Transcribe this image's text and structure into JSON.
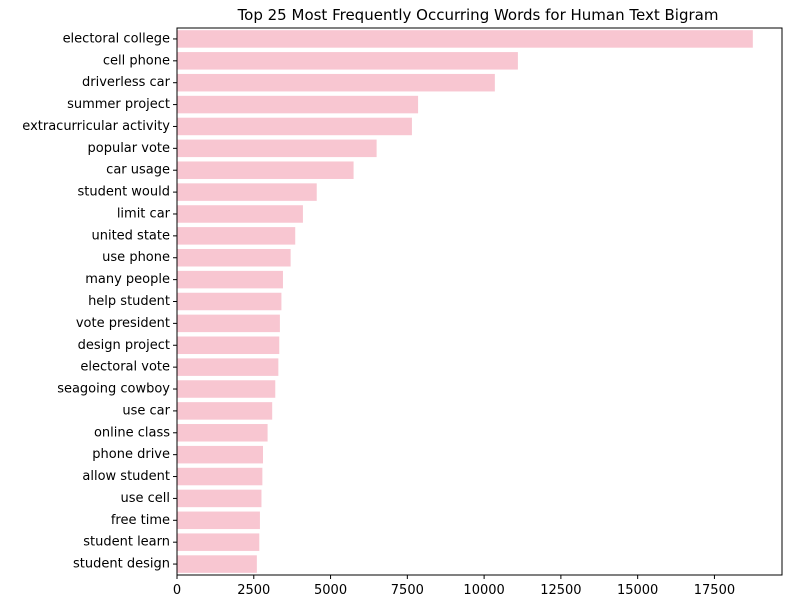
{
  "chart_data": {
    "type": "bar",
    "orientation": "horizontal",
    "title": "Top 25 Most Frequently Occurring Words for Human Text Bigram",
    "xlabel": "",
    "ylabel": "",
    "categories": [
      "electoral college",
      "cell phone",
      "driverless car",
      "summer project",
      "extracurricular activity",
      "popular vote",
      "car usage",
      "student would",
      "limit car",
      "united state",
      "use phone",
      "many people",
      "help student",
      "vote president",
      "design project",
      "electoral vote",
      "seagoing cowboy",
      "use car",
      "online class",
      "phone drive",
      "allow student",
      "use cell",
      "free time",
      "student learn",
      "student design"
    ],
    "values": [
      18750,
      11100,
      10350,
      7850,
      7650,
      6500,
      5750,
      4550,
      4100,
      3850,
      3700,
      3450,
      3400,
      3350,
      3330,
      3300,
      3200,
      3100,
      2950,
      2800,
      2780,
      2750,
      2700,
      2680,
      2600
    ],
    "xlim": [
      0,
      19700
    ],
    "xticks": [
      0,
      2500,
      5000,
      7500,
      10000,
      12500,
      15000,
      17500
    ],
    "xtick_labels": [
      "0",
      "2500",
      "5000",
      "7500",
      "10000",
      "12500",
      "15000",
      "17500"
    ],
    "bar_color": "#f8c6d1",
    "grid": false,
    "legend": "none"
  }
}
